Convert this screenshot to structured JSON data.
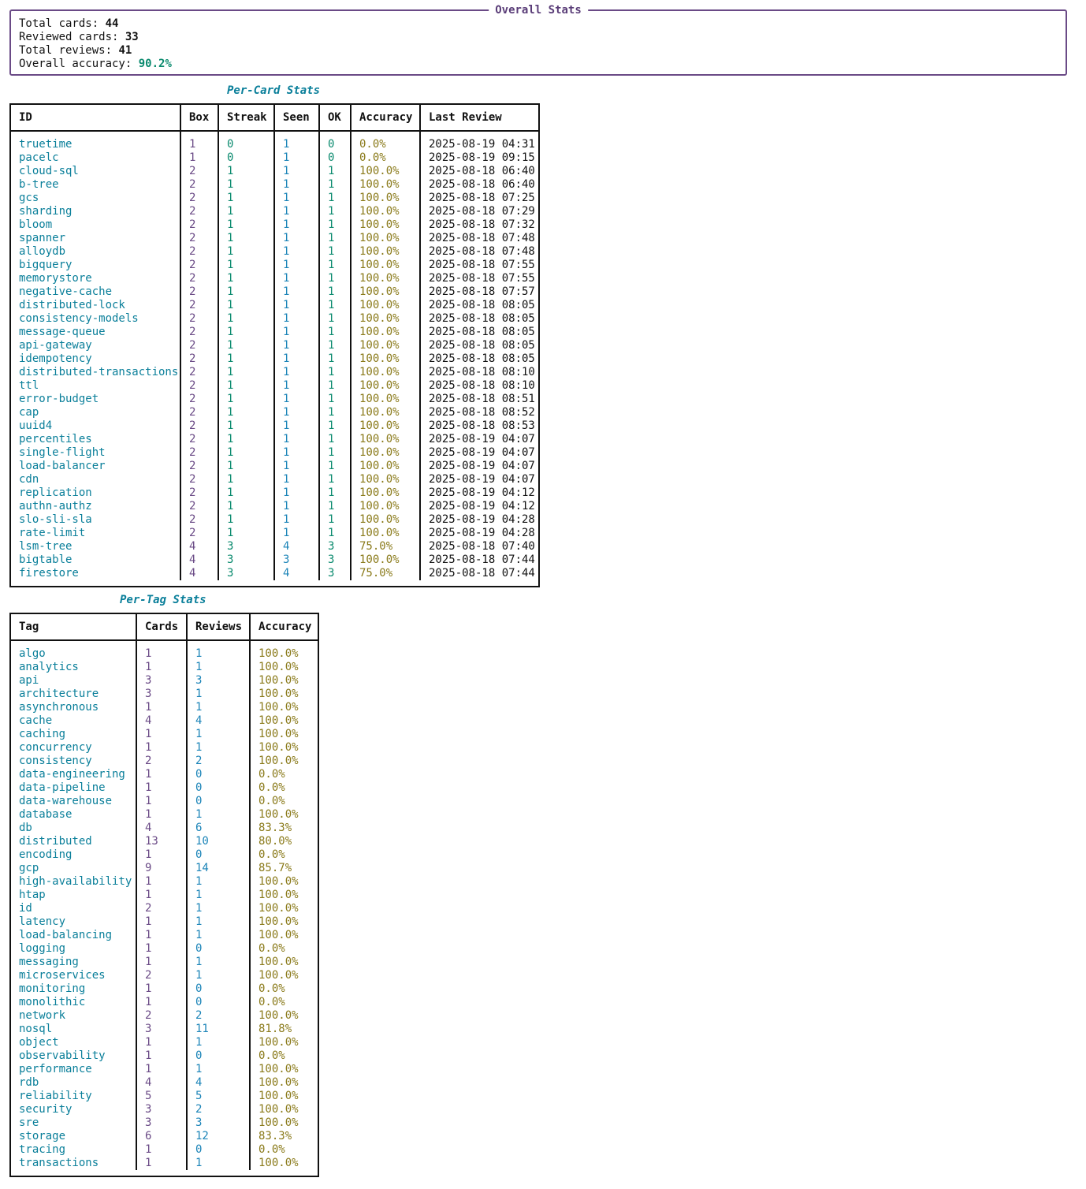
{
  "overall": {
    "title": "Overall Stats",
    "total_cards_label": "Total cards:",
    "total_cards": "44",
    "reviewed_cards_label": "Reviewed cards:",
    "reviewed_cards": "33",
    "total_reviews_label": "Total reviews:",
    "total_reviews": "41",
    "accuracy_label": "Overall accuracy:",
    "accuracy": "90.2%"
  },
  "per_card": {
    "title": "Per-Card Stats",
    "headers": [
      "ID",
      "Box",
      "Streak",
      "Seen",
      "OK",
      "Accuracy",
      "Last Review"
    ],
    "rows": [
      [
        "truetime",
        "1",
        "0",
        "1",
        "0",
        "0.0%",
        "2025-08-19 04:31"
      ],
      [
        "pacelc",
        "1",
        "0",
        "1",
        "0",
        "0.0%",
        "2025-08-19 09:15"
      ],
      [
        "cloud-sql",
        "2",
        "1",
        "1",
        "1",
        "100.0%",
        "2025-08-18 06:40"
      ],
      [
        "b-tree",
        "2",
        "1",
        "1",
        "1",
        "100.0%",
        "2025-08-18 06:40"
      ],
      [
        "gcs",
        "2",
        "1",
        "1",
        "1",
        "100.0%",
        "2025-08-18 07:25"
      ],
      [
        "sharding",
        "2",
        "1",
        "1",
        "1",
        "100.0%",
        "2025-08-18 07:29"
      ],
      [
        "bloom",
        "2",
        "1",
        "1",
        "1",
        "100.0%",
        "2025-08-18 07:32"
      ],
      [
        "spanner",
        "2",
        "1",
        "1",
        "1",
        "100.0%",
        "2025-08-18 07:48"
      ],
      [
        "alloydb",
        "2",
        "1",
        "1",
        "1",
        "100.0%",
        "2025-08-18 07:48"
      ],
      [
        "bigquery",
        "2",
        "1",
        "1",
        "1",
        "100.0%",
        "2025-08-18 07:55"
      ],
      [
        "memorystore",
        "2",
        "1",
        "1",
        "1",
        "100.0%",
        "2025-08-18 07:55"
      ],
      [
        "negative-cache",
        "2",
        "1",
        "1",
        "1",
        "100.0%",
        "2025-08-18 07:57"
      ],
      [
        "distributed-lock",
        "2",
        "1",
        "1",
        "1",
        "100.0%",
        "2025-08-18 08:05"
      ],
      [
        "consistency-models",
        "2",
        "1",
        "1",
        "1",
        "100.0%",
        "2025-08-18 08:05"
      ],
      [
        "message-queue",
        "2",
        "1",
        "1",
        "1",
        "100.0%",
        "2025-08-18 08:05"
      ],
      [
        "api-gateway",
        "2",
        "1",
        "1",
        "1",
        "100.0%",
        "2025-08-18 08:05"
      ],
      [
        "idempotency",
        "2",
        "1",
        "1",
        "1",
        "100.0%",
        "2025-08-18 08:05"
      ],
      [
        "distributed-transactions",
        "2",
        "1",
        "1",
        "1",
        "100.0%",
        "2025-08-18 08:10"
      ],
      [
        "ttl",
        "2",
        "1",
        "1",
        "1",
        "100.0%",
        "2025-08-18 08:10"
      ],
      [
        "error-budget",
        "2",
        "1",
        "1",
        "1",
        "100.0%",
        "2025-08-18 08:51"
      ],
      [
        "cap",
        "2",
        "1",
        "1",
        "1",
        "100.0%",
        "2025-08-18 08:52"
      ],
      [
        "uuid4",
        "2",
        "1",
        "1",
        "1",
        "100.0%",
        "2025-08-18 08:53"
      ],
      [
        "percentiles",
        "2",
        "1",
        "1",
        "1",
        "100.0%",
        "2025-08-19 04:07"
      ],
      [
        "single-flight",
        "2",
        "1",
        "1",
        "1",
        "100.0%",
        "2025-08-19 04:07"
      ],
      [
        "load-balancer",
        "2",
        "1",
        "1",
        "1",
        "100.0%",
        "2025-08-19 04:07"
      ],
      [
        "cdn",
        "2",
        "1",
        "1",
        "1",
        "100.0%",
        "2025-08-19 04:07"
      ],
      [
        "replication",
        "2",
        "1",
        "1",
        "1",
        "100.0%",
        "2025-08-19 04:12"
      ],
      [
        "authn-authz",
        "2",
        "1",
        "1",
        "1",
        "100.0%",
        "2025-08-19 04:12"
      ],
      [
        "slo-sli-sla",
        "2",
        "1",
        "1",
        "1",
        "100.0%",
        "2025-08-19 04:28"
      ],
      [
        "rate-limit",
        "2",
        "1",
        "1",
        "1",
        "100.0%",
        "2025-08-19 04:28"
      ],
      [
        "lsm-tree",
        "4",
        "3",
        "4",
        "3",
        "75.0%",
        "2025-08-18 07:40"
      ],
      [
        "bigtable",
        "4",
        "3",
        "3",
        "3",
        "100.0%",
        "2025-08-18 07:44"
      ],
      [
        "firestore",
        "4",
        "3",
        "4",
        "3",
        "75.0%",
        "2025-08-18 07:44"
      ]
    ]
  },
  "per_tag": {
    "title": "Per-Tag Stats",
    "headers": [
      "Tag",
      "Cards",
      "Reviews",
      "Accuracy"
    ],
    "rows": [
      [
        "algo",
        "1",
        "1",
        "100.0%"
      ],
      [
        "analytics",
        "1",
        "1",
        "100.0%"
      ],
      [
        "api",
        "3",
        "3",
        "100.0%"
      ],
      [
        "architecture",
        "3",
        "1",
        "100.0%"
      ],
      [
        "asynchronous",
        "1",
        "1",
        "100.0%"
      ],
      [
        "cache",
        "4",
        "4",
        "100.0%"
      ],
      [
        "caching",
        "1",
        "1",
        "100.0%"
      ],
      [
        "concurrency",
        "1",
        "1",
        "100.0%"
      ],
      [
        "consistency",
        "2",
        "2",
        "100.0%"
      ],
      [
        "data-engineering",
        "1",
        "0",
        "0.0%"
      ],
      [
        "data-pipeline",
        "1",
        "0",
        "0.0%"
      ],
      [
        "data-warehouse",
        "1",
        "0",
        "0.0%"
      ],
      [
        "database",
        "1",
        "1",
        "100.0%"
      ],
      [
        "db",
        "4",
        "6",
        "83.3%"
      ],
      [
        "distributed",
        "13",
        "10",
        "80.0%"
      ],
      [
        "encoding",
        "1",
        "0",
        "0.0%"
      ],
      [
        "gcp",
        "9",
        "14",
        "85.7%"
      ],
      [
        "high-availability",
        "1",
        "1",
        "100.0%"
      ],
      [
        "htap",
        "1",
        "1",
        "100.0%"
      ],
      [
        "id",
        "2",
        "1",
        "100.0%"
      ],
      [
        "latency",
        "1",
        "1",
        "100.0%"
      ],
      [
        "load-balancing",
        "1",
        "1",
        "100.0%"
      ],
      [
        "logging",
        "1",
        "0",
        "0.0%"
      ],
      [
        "messaging",
        "1",
        "1",
        "100.0%"
      ],
      [
        "microservices",
        "2",
        "1",
        "100.0%"
      ],
      [
        "monitoring",
        "1",
        "0",
        "0.0%"
      ],
      [
        "monolithic",
        "1",
        "0",
        "0.0%"
      ],
      [
        "network",
        "2",
        "2",
        "100.0%"
      ],
      [
        "nosql",
        "3",
        "11",
        "81.8%"
      ],
      [
        "object",
        "1",
        "1",
        "100.0%"
      ],
      [
        "observability",
        "1",
        "0",
        "0.0%"
      ],
      [
        "performance",
        "1",
        "1",
        "100.0%"
      ],
      [
        "rdb",
        "4",
        "4",
        "100.0%"
      ],
      [
        "reliability",
        "5",
        "5",
        "100.0%"
      ],
      [
        "security",
        "3",
        "2",
        "100.0%"
      ],
      [
        "sre",
        "3",
        "3",
        "100.0%"
      ],
      [
        "storage",
        "6",
        "12",
        "83.3%"
      ],
      [
        "tracing",
        "1",
        "0",
        "0.0%"
      ],
      [
        "transactions",
        "1",
        "1",
        "100.0%"
      ]
    ]
  }
}
